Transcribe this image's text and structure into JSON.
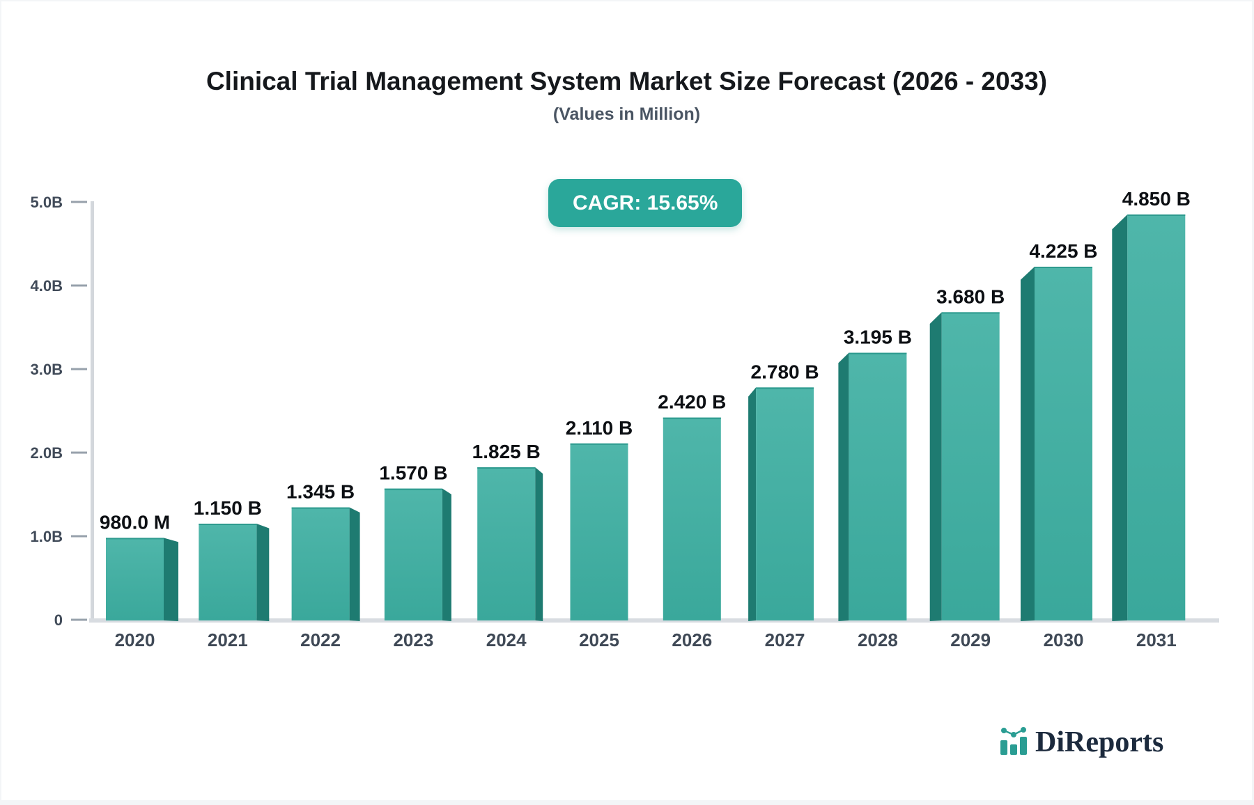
{
  "page": {
    "title": "Clinical Trial Management System Market Size Forecast (2026 - 2033)",
    "subtitle": "(Values in Million)"
  },
  "badge": {
    "label": "CAGR: 15.65%"
  },
  "chart_data": {
    "type": "bar",
    "title": "Clinical Trial Management System Market Size Forecast (2026 - 2033)",
    "subtitle": "(Values in Million)",
    "cagr": "15.65%",
    "categories": [
      "2020",
      "2021",
      "2022",
      "2023",
      "2024",
      "2025",
      "2026",
      "2027",
      "2028",
      "2029",
      "2030",
      "2031"
    ],
    "values": [
      0.98,
      1.15,
      1.345,
      1.57,
      1.825,
      2.11,
      2.42,
      2.78,
      3.195,
      3.68,
      4.225,
      4.85
    ],
    "value_labels": [
      "980.0 M",
      "1.150 B",
      "1.345 B",
      "1.570 B",
      "1.825 B",
      "2.110 B",
      "2.420 B",
      "2.780 B",
      "3.195 B",
      "3.680 B",
      "4.225 B",
      "4.850 B"
    ],
    "values_unit": "B",
    "xlabel": "",
    "ylabel": "",
    "y_tick_labels": [
      "0",
      "1.0B",
      "2.0B",
      "3.0B",
      "4.0B",
      "5.0B"
    ],
    "y_tick_values": [
      0,
      1,
      2,
      3,
      4,
      5
    ],
    "ylim": [
      0,
      5
    ],
    "grid": false,
    "legend": false,
    "bar_style": "3d",
    "colors": {
      "bar_top": "#4fb6aa",
      "bar_bottom": "#3aa89b",
      "bar_side": "#1e7b71",
      "bar_top_edge": "#2d9a8e",
      "axis": "#d3d7dc",
      "baseline": "#d8dce1",
      "tick": "#97a1ab",
      "tick_label": "#414b59",
      "x_label": "#3f4956",
      "value_label": "#0c0f13"
    }
  },
  "brand": {
    "name": "DiReports",
    "icon": "mini-bar-chart-icon",
    "text_color": "#1c2a3d",
    "accent": "#2a9d93"
  },
  "colors": {
    "accent": "#2aa79a",
    "badge_text": "#ffffff",
    "background": "#ffffff",
    "border": "#f3f5f7"
  }
}
